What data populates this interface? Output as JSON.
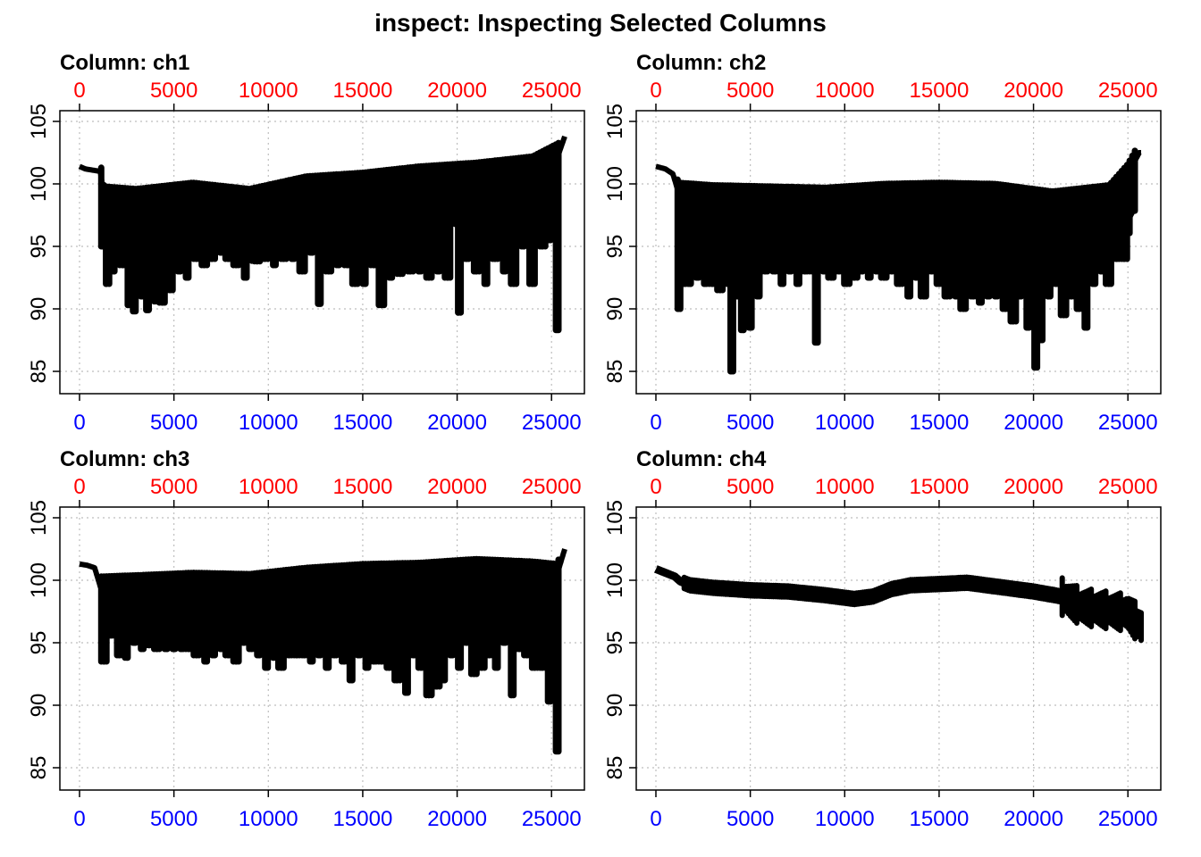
{
  "title": "inspect: Inspecting Selected Columns",
  "colors": {
    "top_axis": "#ff0000",
    "bottom_axis": "#0000ff",
    "series": "#000000",
    "grid": "#bebebe"
  },
  "chart_data": [
    {
      "type": "scatter",
      "title": "Column: ch1",
      "series": [
        {
          "name": "ch1",
          "baseline": [
            [
              0,
              101.4
            ],
            [
              300,
              101.2
            ],
            [
              1100,
              101
            ],
            [
              1300,
              99
            ],
            [
              3000,
              98.8
            ],
            [
              6000,
              99.3
            ],
            [
              9000,
              98.8
            ],
            [
              12000,
              99.8
            ],
            [
              15000,
              100.1
            ],
            [
              18000,
              100.6
            ],
            [
              21000,
              100.9
            ],
            [
              24000,
              101.4
            ],
            [
              25400,
              102.5
            ],
            [
              25700,
              103.8
            ]
          ],
          "dips": [
            [
              1200,
              95
            ],
            [
              1400,
              92
            ],
            [
              1800,
              93
            ],
            [
              2300,
              93.5
            ],
            [
              2600,
              90.3
            ],
            [
              2900,
              89.8
            ],
            [
              3300,
              91
            ],
            [
              3600,
              89.9
            ],
            [
              3800,
              91.5
            ],
            [
              4000,
              90.6
            ],
            [
              4400,
              90.5
            ],
            [
              4800,
              91.5
            ],
            [
              5300,
              93
            ],
            [
              5700,
              92.5
            ],
            [
              6200,
              94
            ],
            [
              6600,
              93.5
            ],
            [
              7000,
              94
            ],
            [
              7500,
              94.5
            ],
            [
              7900,
              94
            ],
            [
              8300,
              93.5
            ],
            [
              8800,
              92.5
            ],
            [
              9400,
              93.8
            ],
            [
              9800,
              94
            ],
            [
              10300,
              93.5
            ],
            [
              10800,
              94
            ],
            [
              11300,
              94
            ],
            [
              11800,
              93
            ],
            [
              12300,
              94.5
            ],
            [
              12700,
              90.4
            ],
            [
              13200,
              93
            ],
            [
              13700,
              93.5
            ],
            [
              14200,
              93.5
            ],
            [
              14600,
              92
            ],
            [
              15100,
              92
            ],
            [
              15600,
              93.5
            ],
            [
              16000,
              90.3
            ],
            [
              16500,
              92.5
            ],
            [
              17000,
              92.8
            ],
            [
              17500,
              93
            ],
            [
              18000,
              93
            ],
            [
              18500,
              92.5
            ],
            [
              19000,
              93
            ],
            [
              19500,
              92.5
            ],
            [
              20100,
              89.7
            ],
            [
              20500,
              94
            ],
            [
              21000,
              93
            ],
            [
              21500,
              92
            ],
            [
              22000,
              94
            ],
            [
              22500,
              93
            ],
            [
              23000,
              92
            ],
            [
              23500,
              95
            ],
            [
              24000,
              92
            ],
            [
              24500,
              95
            ],
            [
              24900,
              95.5
            ],
            [
              25300,
              88.3
            ]
          ]
        }
      ],
      "xlim": [
        0,
        25700
      ],
      "ylim": [
        85,
        105
      ],
      "x_ticks": [
        0,
        5000,
        10000,
        15000,
        20000,
        25000
      ],
      "y_ticks": [
        85,
        90,
        95,
        100,
        105
      ],
      "grid": true
    },
    {
      "type": "scatter",
      "title": "Column: ch2",
      "series": [
        {
          "name": "ch2",
          "baseline": [
            [
              0,
              101.4
            ],
            [
              500,
              101.2
            ],
            [
              900,
              100.8
            ],
            [
              1200,
              99.3
            ],
            [
              3000,
              99.1
            ],
            [
              6000,
              99
            ],
            [
              9000,
              98.9
            ],
            [
              12000,
              99.2
            ],
            [
              15000,
              99.3
            ],
            [
              18000,
              99.2
            ],
            [
              21000,
              98.6
            ],
            [
              24000,
              99.1
            ],
            [
              25000,
              100.8
            ],
            [
              25600,
              102.5
            ]
          ],
          "dips": [
            [
              1200,
              90
            ],
            [
              1500,
              92
            ],
            [
              1800,
              92
            ],
            [
              2200,
              92.5
            ],
            [
              2600,
              92
            ],
            [
              3000,
              92
            ],
            [
              3400,
              91.5
            ],
            [
              3800,
              92
            ],
            [
              4000,
              85
            ],
            [
              4300,
              91
            ],
            [
              4600,
              88.3
            ],
            [
              5000,
              88.5
            ],
            [
              5400,
              91
            ],
            [
              5800,
              93
            ],
            [
              6300,
              93
            ],
            [
              6700,
              92
            ],
            [
              7100,
              93
            ],
            [
              7500,
              92
            ],
            [
              7900,
              93
            ],
            [
              8300,
              93
            ],
            [
              8500,
              87.3
            ],
            [
              8900,
              93
            ],
            [
              9300,
              92.5
            ],
            [
              9700,
              93
            ],
            [
              10100,
              92
            ],
            [
              10500,
              92.5
            ],
            [
              10900,
              93
            ],
            [
              11300,
              92.5
            ],
            [
              11700,
              93
            ],
            [
              12100,
              92.5
            ],
            [
              12500,
              93
            ],
            [
              12900,
              92
            ],
            [
              13400,
              91
            ],
            [
              13800,
              92.5
            ],
            [
              14200,
              91
            ],
            [
              14600,
              93
            ],
            [
              15000,
              92
            ],
            [
              15400,
              91
            ],
            [
              15900,
              91
            ],
            [
              16300,
              90
            ],
            [
              16800,
              91
            ],
            [
              17200,
              90.5
            ],
            [
              17600,
              91
            ],
            [
              18000,
              91
            ],
            [
              18500,
              90
            ],
            [
              18900,
              89
            ],
            [
              19300,
              91
            ],
            [
              19700,
              88.5
            ],
            [
              20100,
              85.3
            ],
            [
              20400,
              87.5
            ],
            [
              20800,
              91
            ],
            [
              21200,
              92
            ],
            [
              21600,
              89.5
            ],
            [
              22000,
              91
            ],
            [
              22400,
              90
            ],
            [
              22800,
              88.5
            ],
            [
              23200,
              92
            ],
            [
              23600,
              93
            ],
            [
              24000,
              92
            ],
            [
              24400,
              94
            ],
            [
              24800,
              94
            ]
          ]
        }
      ],
      "xlim": [
        0,
        25700
      ],
      "ylim": [
        85,
        105
      ],
      "x_ticks": [
        0,
        5000,
        10000,
        15000,
        20000,
        25000
      ],
      "y_ticks": [
        85,
        90,
        95,
        100,
        105
      ],
      "grid": true
    },
    {
      "type": "scatter",
      "title": "Column: ch3",
      "series": [
        {
          "name": "ch3",
          "baseline": [
            [
              0,
              101.3
            ],
            [
              400,
              101.2
            ],
            [
              800,
              101
            ],
            [
              1100,
              99.5
            ],
            [
              3000,
              99.6
            ],
            [
              6000,
              99.8
            ],
            [
              9000,
              99.7
            ],
            [
              12000,
              100.2
            ],
            [
              15000,
              100.5
            ],
            [
              18000,
              100.6
            ],
            [
              21000,
              100.9
            ],
            [
              24000,
              100.7
            ],
            [
              25300,
              100.5
            ],
            [
              25700,
              102.5
            ]
          ],
          "dips": [
            [
              1300,
              93.5
            ],
            [
              1700,
              96
            ],
            [
              2100,
              94
            ],
            [
              2500,
              93.8
            ],
            [
              2900,
              95
            ],
            [
              3300,
              94.5
            ],
            [
              3700,
              94.8
            ],
            [
              4100,
              94.5
            ],
            [
              4600,
              94.5
            ],
            [
              5000,
              94.5
            ],
            [
              5400,
              94.5
            ],
            [
              5800,
              94.5
            ],
            [
              6200,
              94
            ],
            [
              6700,
              93.5
            ],
            [
              7100,
              94
            ],
            [
              7500,
              94.5
            ],
            [
              7900,
              94
            ],
            [
              8300,
              93.5
            ],
            [
              8700,
              95
            ],
            [
              9100,
              94.5
            ],
            [
              9500,
              94
            ],
            [
              9900,
              93
            ],
            [
              10300,
              93.8
            ],
            [
              10700,
              93
            ],
            [
              11100,
              94
            ],
            [
              11500,
              94
            ],
            [
              11900,
              94
            ],
            [
              12300,
              93.5
            ],
            [
              12700,
              94
            ],
            [
              13100,
              93
            ],
            [
              13500,
              94
            ],
            [
              14000,
              93.5
            ],
            [
              14400,
              92
            ],
            [
              14800,
              94
            ],
            [
              15200,
              93
            ],
            [
              15600,
              93.5
            ],
            [
              16000,
              93.5
            ],
            [
              16400,
              93
            ],
            [
              16800,
              92
            ],
            [
              17300,
              91
            ],
            [
              17700,
              94
            ],
            [
              18100,
              93
            ],
            [
              18500,
              90.8
            ],
            [
              18900,
              91.5
            ],
            [
              19300,
              92
            ],
            [
              19700,
              94
            ],
            [
              20100,
              93
            ],
            [
              20500,
              95
            ],
            [
              20900,
              92.5
            ],
            [
              21300,
              93
            ],
            [
              21700,
              94
            ],
            [
              22100,
              93
            ],
            [
              22500,
              95
            ],
            [
              22900,
              90.8
            ],
            [
              23300,
              94.5
            ],
            [
              23700,
              94
            ],
            [
              24100,
              93
            ],
            [
              24500,
              93
            ],
            [
              24900,
              90.3
            ],
            [
              25300,
              86.3
            ]
          ]
        }
      ],
      "xlim": [
        0,
        25700
      ],
      "ylim": [
        85,
        105
      ],
      "x_ticks": [
        0,
        5000,
        10000,
        15000,
        20000,
        25000
      ],
      "y_ticks": [
        85,
        90,
        95,
        100,
        105
      ],
      "grid": true
    },
    {
      "type": "scatter",
      "title": "Column: ch4",
      "series": [
        {
          "name": "ch4",
          "baseline": [
            [
              0,
              100.9
            ],
            [
              500,
              100.6
            ],
            [
              1000,
              100.3
            ],
            [
              1300,
              99.9
            ],
            [
              1800,
              99.6
            ],
            [
              3000,
              99.4
            ],
            [
              5000,
              99.2
            ],
            [
              7000,
              99.1
            ],
            [
              9000,
              98.8
            ],
            [
              10500,
              98.5
            ],
            [
              11500,
              98.7
            ],
            [
              12500,
              99.3
            ],
            [
              13500,
              99.6
            ],
            [
              15000,
              99.7
            ],
            [
              16500,
              99.8
            ],
            [
              18000,
              99.5
            ],
            [
              20000,
              99.1
            ],
            [
              21500,
              98.7
            ],
            [
              22500,
              97.9
            ],
            [
              24000,
              97.6
            ],
            [
              25000,
              97.4
            ],
            [
              25700,
              96.3
            ]
          ],
          "dips": []
        }
      ],
      "xlim": [
        0,
        25700
      ],
      "ylim": [
        85,
        105
      ],
      "x_ticks": [
        0,
        5000,
        10000,
        15000,
        20000,
        25000
      ],
      "y_ticks": [
        85,
        90,
        95,
        100,
        105
      ],
      "grid": true
    }
  ]
}
